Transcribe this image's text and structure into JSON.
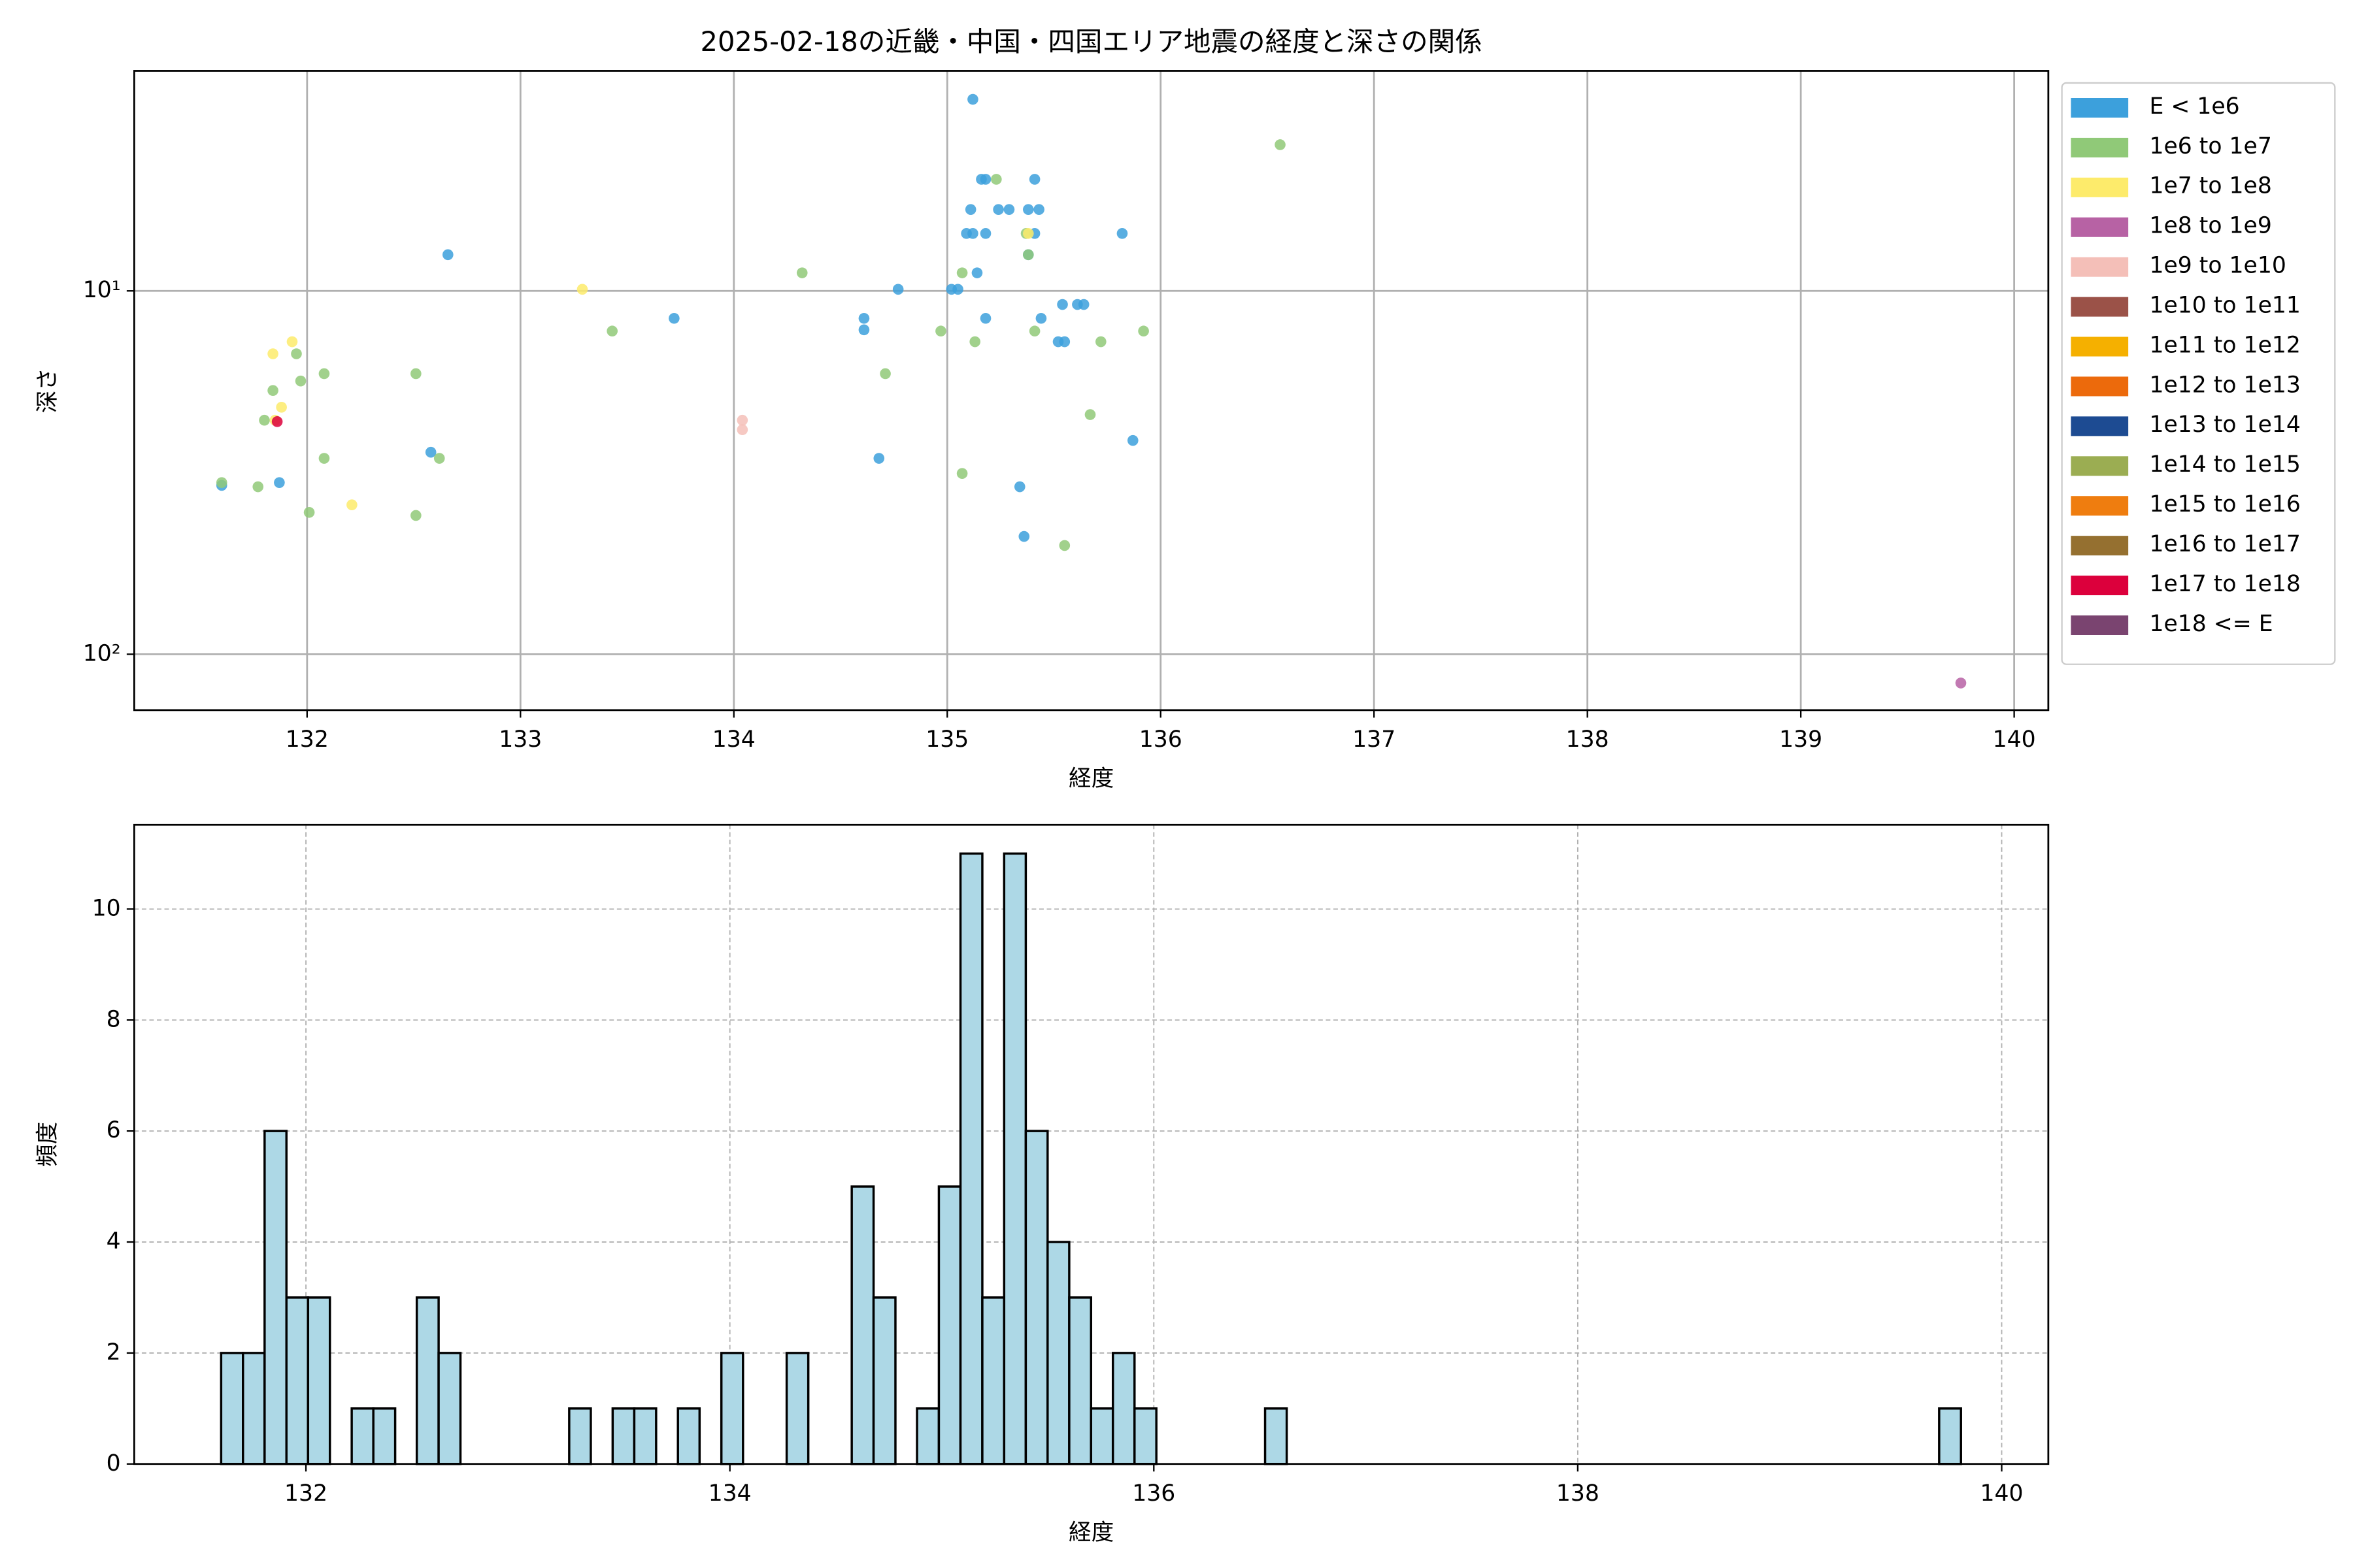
{
  "chart_data": [
    {
      "type": "scatter",
      "title": "2025-02-18の近畿・中国・四国エリア地震の経度と深さの関係",
      "xlabel": "経度",
      "ylabel": "深さ",
      "xlim": [
        131.19,
        140.16
      ],
      "xticks": [
        132,
        133,
        134,
        135,
        136,
        137,
        138,
        139,
        140
      ],
      "ylim": [
        2.48,
        142.5
      ],
      "y_log": true,
      "y_inverted": true,
      "yticks": [
        {
          "value": 10,
          "label": "10¹"
        },
        {
          "value": 100,
          "label": "10²"
        }
      ],
      "grid": true,
      "legend": "outside-upper-right",
      "series": [
        {
          "name": "E < 1e6",
          "color": "#3ca0dc",
          "x": [
            131.6,
            131.87,
            132.66,
            132.58,
            133.72,
            134.61,
            134.61,
            134.77,
            134.68,
            135.12,
            135.16,
            135.18,
            135.11,
            135.09,
            135.12,
            135.18,
            135.02,
            135.05,
            135.14,
            135.18,
            135.24,
            135.29,
            135.38,
            135.41,
            135.43,
            135.41,
            135.38,
            135.44,
            135.54,
            135.52,
            135.55,
            135.61,
            135.64,
            135.82,
            135.87,
            135.34,
            135.36
          ],
          "values": [
            34.3,
            33.7,
            7.95,
            27.8,
            11.9,
            11.9,
            12.8,
            9.9,
            28.9,
            2.97,
            4.93,
            4.93,
            5.97,
            6.95,
            6.95,
            6.95,
            9.9,
            9.9,
            8.92,
            11.9,
            5.97,
            5.97,
            5.97,
            4.93,
            5.97,
            6.95,
            7.95,
            11.9,
            10.9,
            13.8,
            13.8,
            10.9,
            10.9,
            6.95,
            25.8,
            34.6,
            47.4
          ]
        },
        {
          "name": "1e6 to 1e7",
          "color": "#90c978",
          "x": [
            131.6,
            131.77,
            131.8,
            131.84,
            131.95,
            131.97,
            132.01,
            132.08,
            132.08,
            132.51,
            132.51,
            132.62,
            133.43,
            134.32,
            134.71,
            134.97,
            135.07,
            135.07,
            135.13,
            135.23,
            135.37,
            135.41,
            135.38,
            135.55,
            135.67,
            135.72,
            135.92,
            136.56
          ],
          "values": [
            33.7,
            34.6,
            22.7,
            18.8,
            14.9,
            17.7,
            40.7,
            28.9,
            16.9,
            16.9,
            41.5,
            28.9,
            12.9,
            8.92,
            16.9,
            12.9,
            8.92,
            31.8,
            13.8,
            4.93,
            6.95,
            12.9,
            7.95,
            50.2,
            21.9,
            13.8,
            12.9,
            3.96
          ]
        },
        {
          "name": "1e7 to 1e8",
          "color": "#fdeb6b",
          "x": [
            131.84,
            131.93,
            131.88,
            131.85,
            132.21,
            133.29,
            135.38
          ],
          "values": [
            14.9,
            13.8,
            20.9,
            22.7,
            38.8,
            9.9,
            6.95
          ]
        },
        {
          "name": "1e8 to 1e9",
          "color": "#b762a4",
          "x": [
            139.75
          ],
          "values": [
            120
          ]
        },
        {
          "name": "1e9 to 1e10",
          "color": "#f4bfb8",
          "x": [
            134.04,
            134.04
          ],
          "values": [
            22.7,
            24.1
          ]
        },
        {
          "name": "1e10 to 1e11",
          "color": "#9b5248",
          "x": [],
          "values": []
        },
        {
          "name": "1e11 to 1e12",
          "color": "#f5b000",
          "x": [],
          "values": []
        },
        {
          "name": "1e12 to 1e13",
          "color": "#ec6a0c",
          "x": [],
          "values": []
        },
        {
          "name": "1e13 to 1e14",
          "color": "#1d4b92",
          "x": [],
          "values": []
        },
        {
          "name": "1e14 to 1e15",
          "color": "#9bad52",
          "x": [],
          "values": []
        },
        {
          "name": "1e15 to 1e16",
          "color": "#ef7d0f",
          "x": [],
          "values": []
        },
        {
          "name": "1e16 to 1e17",
          "color": "#957030",
          "x": [],
          "values": []
        },
        {
          "name": "1e17 to 1e18",
          "color": "#dc003c",
          "x": [
            131.86
          ],
          "values": [
            22.9
          ]
        },
        {
          "name": "1e18 <= E",
          "color": "#7a4470",
          "x": [],
          "values": []
        }
      ]
    },
    {
      "type": "histogram",
      "xlabel": "経度",
      "ylabel": "頻度",
      "xlim": [
        131.19,
        140.22
      ],
      "xticks": [
        132,
        134,
        136,
        138,
        140
      ],
      "ylim": [
        0,
        11.52
      ],
      "yticks": [
        0,
        2,
        4,
        6,
        8,
        10
      ],
      "grid": true,
      "grid_style": "dashed",
      "color": "#add8e6",
      "edgecolor": "#000000",
      "bins": [
        131.6,
        131.703,
        131.805,
        131.908,
        132.01,
        132.113,
        132.216,
        132.318,
        132.421,
        132.523,
        132.626,
        132.729,
        132.831,
        132.934,
        133.036,
        133.139,
        133.242,
        133.344,
        133.447,
        133.549,
        133.652,
        133.755,
        133.857,
        133.96,
        134.062,
        134.165,
        134.268,
        134.37,
        134.473,
        134.575,
        134.678,
        134.781,
        134.883,
        134.986,
        135.088,
        135.191,
        135.294,
        135.396,
        135.499,
        135.601,
        135.704,
        135.807,
        135.909,
        136.012,
        136.114,
        136.217,
        136.32,
        136.422,
        136.525,
        136.627,
        136.73,
        136.833,
        136.935,
        137.038,
        137.14,
        137.243,
        137.346,
        137.448,
        137.551,
        137.653,
        137.756,
        137.859,
        137.961,
        138.064,
        138.166,
        138.269,
        138.372,
        138.474,
        138.577,
        138.679,
        138.782,
        138.885,
        138.987,
        139.09,
        139.192,
        139.295,
        139.398,
        139.5,
        139.603,
        139.705,
        139.808
      ],
      "values": [
        2,
        2,
        6,
        3,
        3,
        0,
        1,
        1,
        0,
        3,
        2,
        0,
        0,
        0,
        0,
        0,
        1,
        0,
        1,
        1,
        0,
        1,
        0,
        2,
        0,
        0,
        2,
        0,
        0,
        5,
        3,
        0,
        1,
        5,
        11,
        3,
        11,
        6,
        4,
        3,
        1,
        2,
        1,
        0,
        0,
        0,
        0,
        0,
        1,
        0,
        0,
        0,
        0,
        0,
        0,
        0,
        0,
        0,
        0,
        0,
        0,
        0,
        0,
        0,
        0,
        0,
        0,
        0,
        0,
        0,
        0,
        0,
        0,
        0,
        0,
        0,
        0,
        0,
        0,
        1
      ]
    }
  ]
}
